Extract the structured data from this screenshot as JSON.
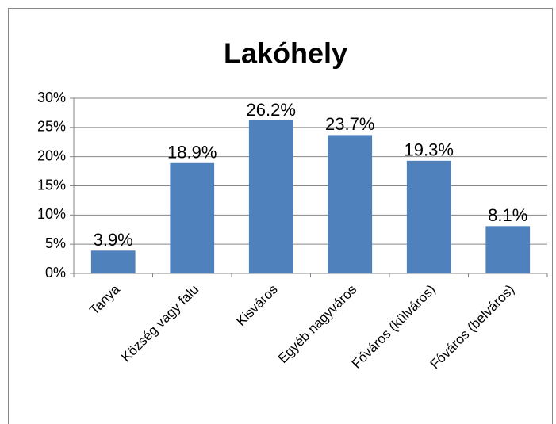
{
  "chart_data": {
    "type": "bar",
    "title": "Lakóhely",
    "categories": [
      "Tanya",
      "Község vagy falu",
      "Kisváros",
      "Egyéb nagyváros",
      "Főváros (külváros)",
      "Főváros (belváros)"
    ],
    "values": [
      3.9,
      18.9,
      26.2,
      23.7,
      19.3,
      8.1
    ],
    "value_labels": [
      "3.9%",
      "18.9%",
      "26.2%",
      "23.7%",
      "19.3%",
      "8.1%"
    ],
    "color": "#4f81bd",
    "ylim": [
      0,
      30
    ],
    "yticks": [
      {
        "value": 0,
        "label": "0%"
      },
      {
        "value": 5,
        "label": "5%"
      },
      {
        "value": 10,
        "label": "10%"
      },
      {
        "value": 15,
        "label": "15%"
      },
      {
        "value": 20,
        "label": "20%"
      },
      {
        "value": 25,
        "label": "25%"
      },
      {
        "value": 30,
        "label": "30%"
      }
    ],
    "grid": true
  }
}
